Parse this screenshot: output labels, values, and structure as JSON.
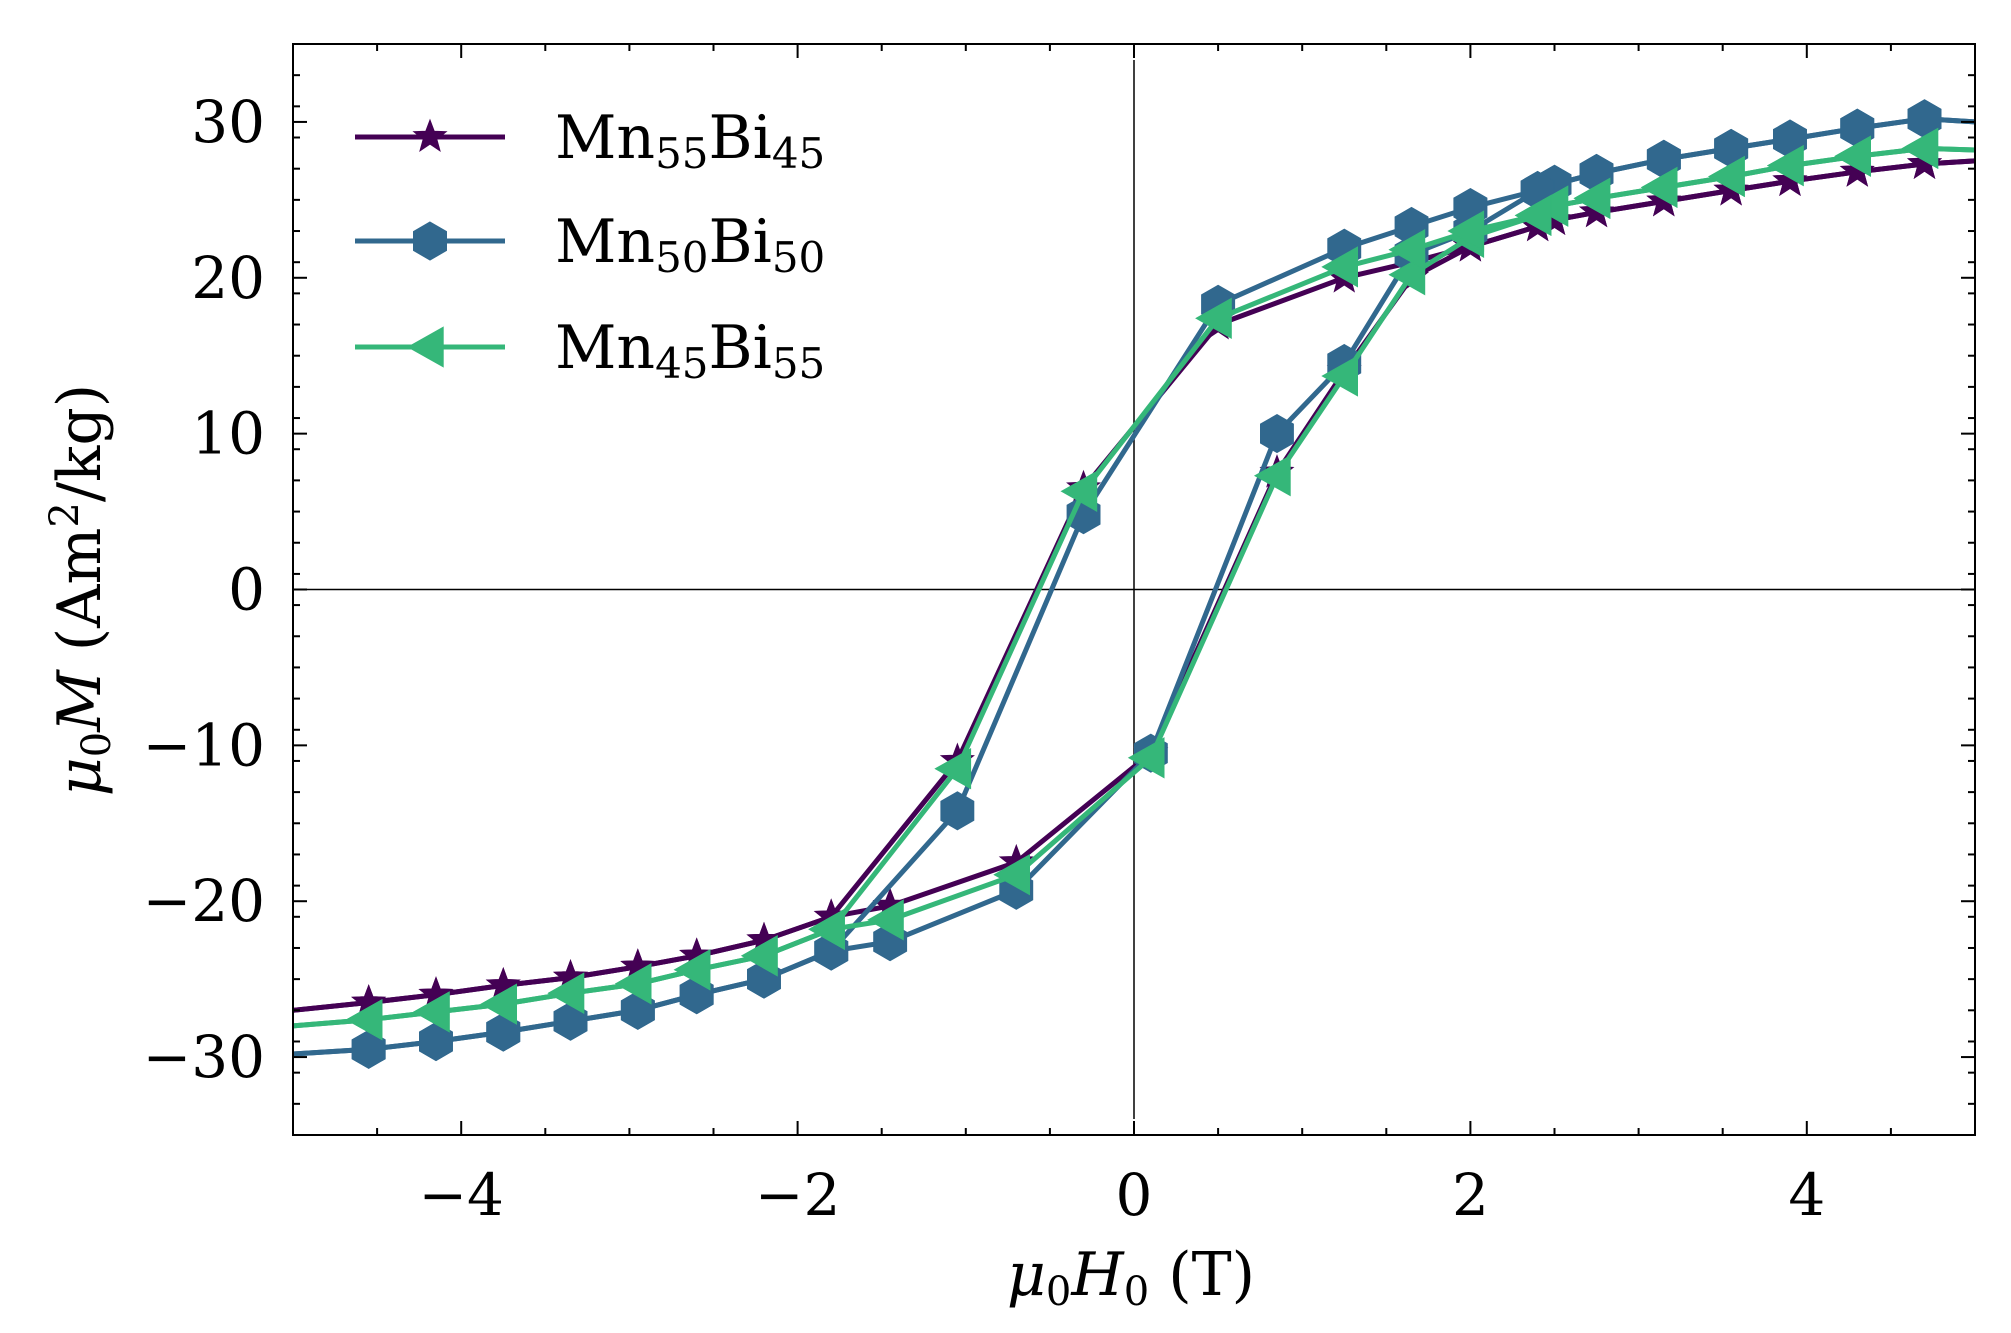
{
  "chart_data": {
    "type": "line",
    "title": "",
    "xlabel_parts": {
      "mu": "μ",
      "sub0": "0",
      "H": "H",
      "subH": "0",
      "unit": " (T)"
    },
    "ylabel_parts": {
      "mu": "μ",
      "sub0": "0",
      "M": "M",
      "unit_a": " (Am",
      "sup": "2",
      "unit_b": "/kg)"
    },
    "xlim": [
      -5,
      5
    ],
    "ylim": [
      -35,
      35
    ],
    "xticks": [
      -4,
      -2,
      0,
      2,
      4
    ],
    "xtick_labels": [
      "−4",
      "−2",
      "0",
      "2",
      "4"
    ],
    "yticks": [
      -30,
      -20,
      -10,
      0,
      10,
      20,
      30
    ],
    "ytick_labels": [
      "−30",
      "−20",
      "−10",
      "0",
      "10",
      "20",
      "30"
    ],
    "grid": false,
    "legend_position": "top-left",
    "series": [
      {
        "name": "Mn55Bi45",
        "label_main": "Mn",
        "label_sub1": "55",
        "label_mid": "Bi",
        "label_sub2": "45",
        "color": "#440154",
        "marker": "star",
        "branch_up": {
          "x": [
            -5.0,
            -4.55,
            -4.15,
            -3.75,
            -3.35,
            -2.95,
            -2.6,
            -2.2,
            -1.8,
            -1.45,
            -0.7,
            0.1,
            0.85,
            1.25,
            1.65,
            2.0,
            2.4,
            2.5,
            2.75,
            3.15,
            3.55,
            3.9,
            4.3,
            4.7,
            5.0
          ],
          "y": [
            -27.0,
            -26.5,
            -26.0,
            -25.4,
            -24.9,
            -24.2,
            -23.5,
            -22.5,
            -21.0,
            -20.3,
            -17.5,
            -10.5,
            7.5,
            14.0,
            20.0,
            22.0,
            23.3,
            23.7,
            24.2,
            24.9,
            25.6,
            26.2,
            26.8,
            27.3,
            27.5
          ]
        },
        "branch_down": {
          "x": [
            5.0,
            4.7,
            4.3,
            3.9,
            3.55,
            3.15,
            2.75,
            2.5,
            2.4,
            2.0,
            1.65,
            1.25,
            0.5,
            -0.3,
            -1.05,
            -1.8,
            -2.2,
            -2.6,
            -2.95,
            -3.35,
            -3.75,
            -4.15,
            -4.55,
            -5.0
          ],
          "y": [
            27.5,
            27.3,
            26.8,
            26.2,
            25.6,
            24.9,
            24.2,
            23.7,
            23.3,
            22.0,
            21.0,
            20.0,
            17.0,
            6.5,
            -11.0,
            -21.0,
            -22.5,
            -23.5,
            -24.2,
            -24.9,
            -25.4,
            -26.0,
            -26.5,
            -27.0
          ]
        }
      },
      {
        "name": "Mn50Bi50",
        "label_main": "Mn",
        "label_sub1": "50",
        "label_mid": "Bi",
        "label_sub2": "50",
        "color": "#31688e",
        "marker": "hexagon",
        "branch_up": {
          "x": [
            -5.0,
            -4.55,
            -4.15,
            -3.75,
            -3.35,
            -2.95,
            -2.6,
            -2.2,
            -1.8,
            -1.45,
            -0.7,
            0.1,
            0.85,
            1.25,
            1.65,
            2.0,
            2.4,
            2.5,
            2.75,
            3.15,
            3.55,
            3.9,
            4.3,
            4.7,
            5.0
          ],
          "y": [
            -29.8,
            -29.5,
            -29.0,
            -28.4,
            -27.7,
            -27.0,
            -26.0,
            -25.0,
            -23.2,
            -22.6,
            -19.3,
            -10.5,
            10.0,
            14.5,
            21.5,
            23.0,
            25.6,
            26.0,
            26.7,
            27.6,
            28.3,
            28.9,
            29.6,
            30.2,
            30.0
          ]
        },
        "branch_down": {
          "x": [
            5.0,
            4.7,
            4.3,
            3.9,
            3.55,
            3.15,
            2.75,
            2.5,
            2.4,
            2.0,
            1.65,
            1.25,
            0.5,
            -0.3,
            -1.05,
            -1.8,
            -2.2,
            -2.6,
            -2.95,
            -3.35,
            -3.75,
            -4.15,
            -4.55,
            -5.0
          ],
          "y": [
            30.0,
            30.2,
            29.6,
            28.9,
            28.3,
            27.6,
            26.7,
            26.0,
            25.6,
            24.5,
            23.3,
            21.9,
            18.3,
            4.8,
            -14.2,
            -23.2,
            -25.0,
            -26.0,
            -27.0,
            -27.7,
            -28.4,
            -29.0,
            -29.5,
            -29.8
          ]
        }
      },
      {
        "name": "Mn45Bi55",
        "label_main": "Mn",
        "label_sub1": "45",
        "label_mid": "Bi",
        "label_sub2": "55",
        "color": "#35b779",
        "marker": "triangle-left",
        "branch_up": {
          "x": [
            -5.0,
            -4.55,
            -4.15,
            -3.75,
            -3.35,
            -2.95,
            -2.6,
            -2.2,
            -1.8,
            -1.45,
            -0.7,
            0.1,
            0.85,
            1.25,
            1.65,
            2.0,
            2.4,
            2.5,
            2.75,
            3.15,
            3.55,
            3.9,
            4.3,
            4.7,
            5.0
          ],
          "y": [
            -28.0,
            -27.6,
            -27.1,
            -26.6,
            -25.9,
            -25.3,
            -24.4,
            -23.5,
            -21.8,
            -21.2,
            -18.3,
            -10.8,
            7.3,
            13.7,
            20.2,
            22.6,
            24.0,
            24.6,
            25.1,
            25.8,
            26.5,
            27.2,
            27.8,
            28.3,
            28.2
          ]
        },
        "branch_down": {
          "x": [
            5.0,
            4.7,
            4.3,
            3.9,
            3.55,
            3.15,
            2.75,
            2.5,
            2.4,
            2.0,
            1.65,
            1.25,
            0.5,
            -0.3,
            -1.05,
            -1.8,
            -2.2,
            -2.6,
            -2.95,
            -3.35,
            -3.75,
            -4.15,
            -4.55,
            -5.0
          ],
          "y": [
            28.2,
            28.3,
            27.8,
            27.2,
            26.5,
            25.8,
            25.1,
            24.6,
            24.0,
            23.0,
            21.8,
            20.7,
            17.4,
            6.3,
            -11.5,
            -21.8,
            -23.5,
            -24.4,
            -25.3,
            -25.9,
            -26.6,
            -27.1,
            -27.6,
            -28.0
          ]
        }
      }
    ]
  }
}
